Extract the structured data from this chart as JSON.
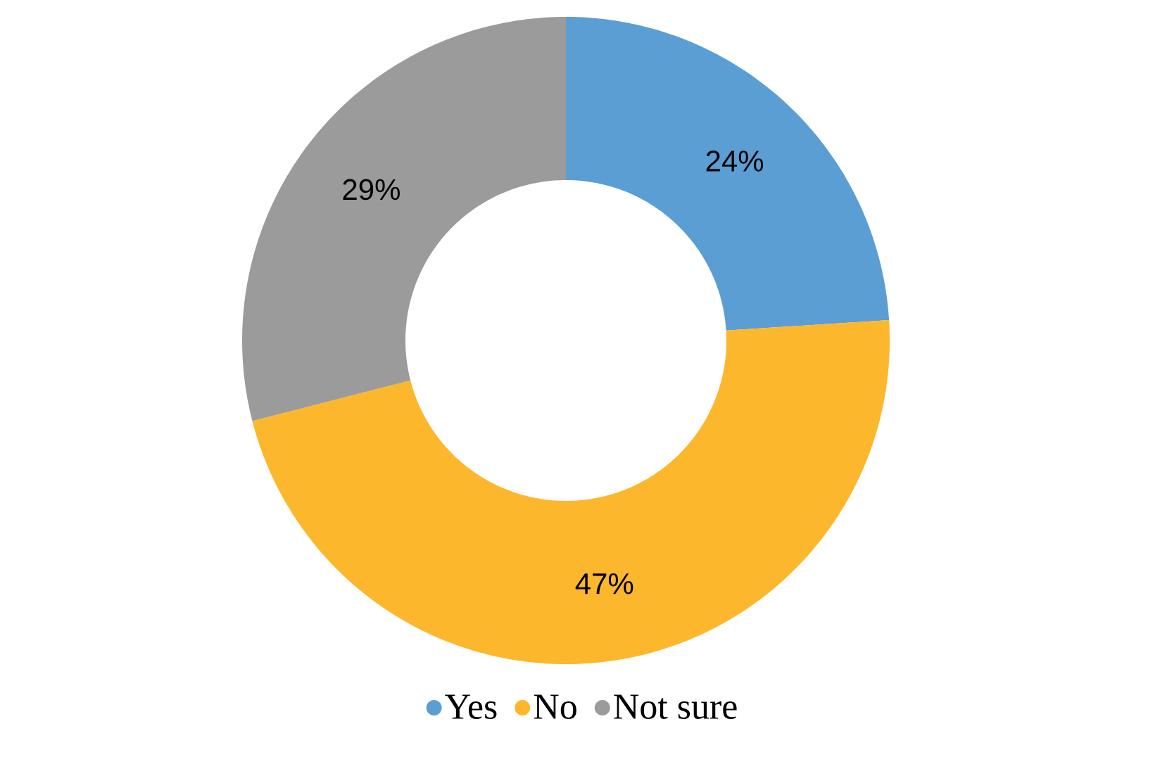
{
  "chart_data": {
    "type": "donut",
    "categories": [
      "Yes",
      "No",
      "Not sure"
    ],
    "values": [
      24,
      47,
      29
    ],
    "value_labels": [
      "24%",
      "47%",
      "29%"
    ],
    "colors": [
      "#5b9ed4",
      "#fdb72c",
      "#9b9b9b"
    ],
    "legend": "bottom"
  }
}
